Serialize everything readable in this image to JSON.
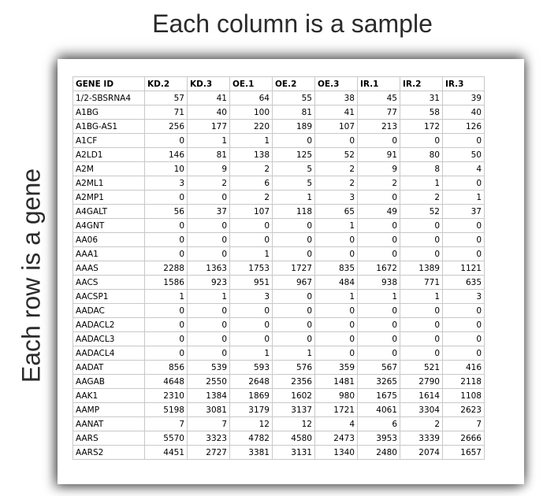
{
  "captions": {
    "top": "Each column is a sample",
    "side": "Each row is a gene"
  },
  "table": {
    "headers": [
      "GENE ID",
      "KD.2",
      "KD.3",
      "OE.1",
      "OE.2",
      "OE.3",
      "IR.1",
      "IR.2",
      "IR.3"
    ],
    "rows": [
      [
        "1/2-SBSRNA4",
        "57",
        "41",
        "64",
        "55",
        "38",
        "45",
        "31",
        "39"
      ],
      [
        "A1BG",
        "71",
        "40",
        "100",
        "81",
        "41",
        "77",
        "58",
        "40"
      ],
      [
        "A1BG-AS1",
        "256",
        "177",
        "220",
        "189",
        "107",
        "213",
        "172",
        "126"
      ],
      [
        "A1CF",
        "0",
        "1",
        "1",
        "0",
        "0",
        "0",
        "0",
        "0"
      ],
      [
        "A2LD1",
        "146",
        "81",
        "138",
        "125",
        "52",
        "91",
        "80",
        "50"
      ],
      [
        "A2M",
        "10",
        "9",
        "2",
        "5",
        "2",
        "9",
        "8",
        "4"
      ],
      [
        "A2ML1",
        "3",
        "2",
        "6",
        "5",
        "2",
        "2",
        "1",
        "0"
      ],
      [
        "A2MP1",
        "0",
        "0",
        "2",
        "1",
        "3",
        "0",
        "2",
        "1"
      ],
      [
        "A4GALT",
        "56",
        "37",
        "107",
        "118",
        "65",
        "49",
        "52",
        "37"
      ],
      [
        "A4GNT",
        "0",
        "0",
        "0",
        "0",
        "1",
        "0",
        "0",
        "0"
      ],
      [
        "AA06",
        "0",
        "0",
        "0",
        "0",
        "0",
        "0",
        "0",
        "0"
      ],
      [
        "AAA1",
        "0",
        "0",
        "1",
        "0",
        "0",
        "0",
        "0",
        "0"
      ],
      [
        "AAAS",
        "2288",
        "1363",
        "1753",
        "1727",
        "835",
        "1672",
        "1389",
        "1121"
      ],
      [
        "AACS",
        "1586",
        "923",
        "951",
        "967",
        "484",
        "938",
        "771",
        "635"
      ],
      [
        "AACSP1",
        "1",
        "1",
        "3",
        "0",
        "1",
        "1",
        "1",
        "3"
      ],
      [
        "AADAC",
        "0",
        "0",
        "0",
        "0",
        "0",
        "0",
        "0",
        "0"
      ],
      [
        "AADACL2",
        "0",
        "0",
        "0",
        "0",
        "0",
        "0",
        "0",
        "0"
      ],
      [
        "AADACL3",
        "0",
        "0",
        "0",
        "0",
        "0",
        "0",
        "0",
        "0"
      ],
      [
        "AADACL4",
        "0",
        "0",
        "1",
        "1",
        "0",
        "0",
        "0",
        "0"
      ],
      [
        "AADAT",
        "856",
        "539",
        "593",
        "576",
        "359",
        "567",
        "521",
        "416"
      ],
      [
        "AAGAB",
        "4648",
        "2550",
        "2648",
        "2356",
        "1481",
        "3265",
        "2790",
        "2118"
      ],
      [
        "AAK1",
        "2310",
        "1384",
        "1869",
        "1602",
        "980",
        "1675",
        "1614",
        "1108"
      ],
      [
        "AAMP",
        "5198",
        "3081",
        "3179",
        "3137",
        "1721",
        "4061",
        "3304",
        "2623"
      ],
      [
        "AANAT",
        "7",
        "7",
        "12",
        "12",
        "4",
        "6",
        "2",
        "7"
      ],
      [
        "AARS",
        "5570",
        "3323",
        "4782",
        "4580",
        "2473",
        "3953",
        "3339",
        "2666"
      ],
      [
        "AARS2",
        "4451",
        "2727",
        "3381",
        "3131",
        "1340",
        "2480",
        "2074",
        "1657"
      ]
    ]
  }
}
